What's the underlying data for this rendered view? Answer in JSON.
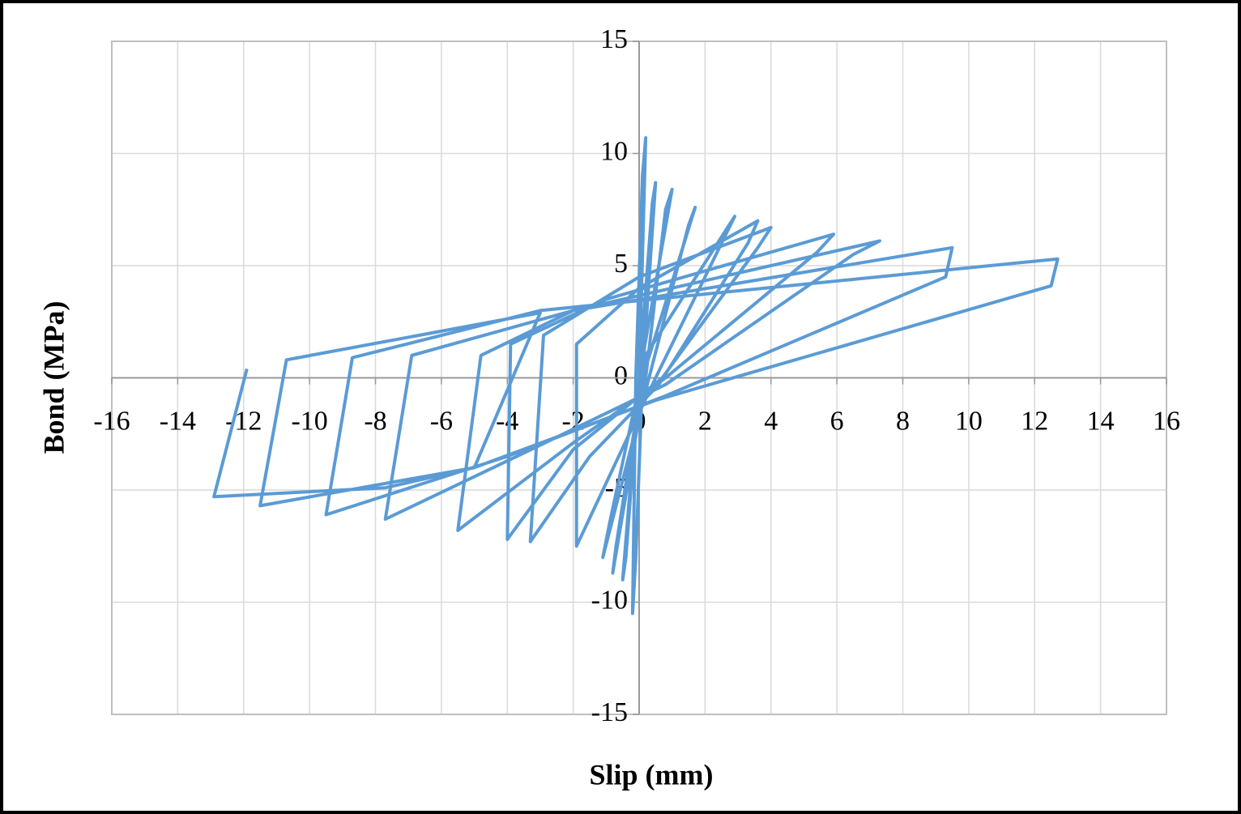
{
  "chart_data": {
    "type": "line",
    "x_label": "Slip (mm)",
    "y_label": "Bond (MPa)",
    "color": "#5b9bd5",
    "grid": true,
    "xlim": [
      -16,
      16
    ],
    "ylim": [
      -15,
      15
    ],
    "xticks": [
      -16,
      -14,
      -12,
      -10,
      -8,
      -6,
      -4,
      -2,
      0,
      2,
      4,
      6,
      8,
      10,
      12,
      14,
      16
    ],
    "yticks": [
      -15,
      -10,
      -5,
      0,
      5,
      10,
      15
    ],
    "x": [
      0,
      0.2,
      0.1,
      -0.1,
      -0.2,
      -0.1,
      0.1,
      0.5,
      0.4,
      0.0,
      -0.5,
      -0.4,
      0,
      1.0,
      0.8,
      0.2,
      -0.8,
      -0.7,
      0.1,
      1.7,
      1.5,
      0.3,
      -1.1,
      -0.9,
      0.2,
      2.9,
      2.6,
      0.5,
      -1.9,
      -1.9,
      0,
      3.6,
      3.3,
      0.6,
      -1.5,
      -3.3,
      -2.9,
      0,
      4.0,
      3.6,
      0.7,
      -2,
      -4.0,
      -3.9,
      -1,
      5.9,
      5.4,
      0.8,
      -2,
      -5.5,
      -4.8,
      -2,
      7.3,
      6.5,
      0.8,
      -3,
      -7.7,
      -6.9,
      -2,
      9.5,
      9.3,
      0.8,
      -4,
      -9.5,
      -8.7,
      -3,
      12.7,
      12.5,
      0.5,
      -5,
      -11.5,
      -10.7,
      -3,
      -5,
      -7.7,
      -12.9,
      -11.9
    ],
    "values": [
      0,
      10.7,
      9,
      0,
      -10.5,
      -8,
      0,
      8.7,
      7.8,
      0,
      -9.0,
      -8,
      0,
      8.4,
      7.5,
      0,
      -8.7,
      -7.5,
      0,
      7.6,
      6.8,
      0,
      -8.0,
      -6.5,
      1,
      7.2,
      6.3,
      0,
      -7.5,
      1.5,
      4,
      7.0,
      6.0,
      -0.3,
      -3.5,
      -7.3,
      1.9,
      4.5,
      6.7,
      5.8,
      0,
      -3.2,
      -7.2,
      1.5,
      3.5,
      6.4,
      5.6,
      0,
      -2.9,
      -6.8,
      1.0,
      3,
      6.1,
      5.5,
      -0.3,
      -3,
      -6.3,
      1.0,
      3,
      5.8,
      4.5,
      -0.8,
      -3.5,
      -6.1,
      0.9,
      3,
      5.3,
      4.1,
      -1,
      -4,
      -5.7,
      0.8,
      2.9,
      -4,
      -4.9,
      -5.3,
      0.4
    ]
  }
}
